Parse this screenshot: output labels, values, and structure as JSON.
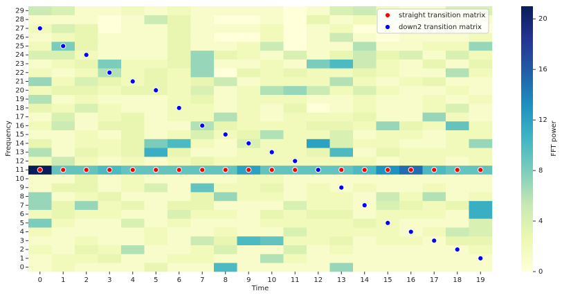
{
  "chart_data": {
    "type": "heatmap",
    "xlabel": "Time",
    "ylabel": "Frequency",
    "colorbar_label": "FFT power",
    "colormap": "YlGnBu",
    "clim": [
      0,
      21
    ],
    "cticks": [
      0,
      4,
      8,
      12,
      16,
      20
    ],
    "legend": "upper right",
    "x": [
      0,
      1,
      2,
      3,
      4,
      5,
      6,
      7,
      8,
      9,
      10,
      11,
      12,
      13,
      14,
      15,
      16,
      17,
      18,
      19
    ],
    "y": [
      0,
      1,
      2,
      3,
      4,
      5,
      6,
      7,
      8,
      9,
      10,
      11,
      12,
      13,
      14,
      15,
      16,
      17,
      18,
      19,
      20,
      21,
      22,
      23,
      24,
      25,
      26,
      27,
      28,
      29
    ],
    "z": [
      [
        1,
        2,
        1,
        1,
        1,
        3,
        1,
        1,
        10,
        1,
        1,
        1,
        1,
        7,
        1,
        1,
        1,
        1,
        1,
        1
      ],
      [
        1,
        2,
        2,
        3,
        1,
        1,
        2,
        2,
        1,
        1,
        6,
        2,
        1,
        1,
        1,
        1,
        1,
        1,
        1,
        1
      ],
      [
        2,
        1,
        3,
        2,
        6,
        1,
        1,
        2,
        4,
        1,
        1,
        4,
        1,
        2,
        1,
        1,
        1,
        1,
        1,
        2
      ],
      [
        1,
        1,
        2,
        1,
        1,
        2,
        1,
        5,
        3,
        10,
        9,
        2,
        2,
        3,
        1,
        2,
        2,
        1,
        3,
        3
      ],
      [
        2,
        1,
        1,
        1,
        1,
        2,
        1,
        1,
        2,
        1,
        1,
        4,
        2,
        2,
        2,
        2,
        1,
        2,
        5,
        4
      ],
      [
        8,
        2,
        1,
        1,
        4,
        1,
        2,
        1,
        1,
        1,
        2,
        2,
        2,
        2,
        3,
        2,
        1,
        1,
        1,
        4
      ],
      [
        2,
        3,
        2,
        2,
        1,
        1,
        4,
        2,
        2,
        1,
        3,
        2,
        3,
        3,
        1,
        2,
        2,
        2,
        1,
        11
      ],
      [
        7,
        3,
        7,
        2,
        3,
        1,
        3,
        3,
        1,
        1,
        1,
        4,
        2,
        2,
        1,
        4,
        3,
        2,
        3,
        11
      ],
      [
        7,
        1,
        2,
        3,
        1,
        1,
        1,
        3,
        7,
        2,
        2,
        1,
        2,
        2,
        1,
        5,
        2,
        6,
        1,
        2
      ],
      [
        1,
        3,
        3,
        1,
        2,
        4,
        1,
        9,
        2,
        2,
        3,
        1,
        2,
        1,
        2,
        1,
        1,
        2,
        1,
        1
      ],
      [
        1,
        1,
        3,
        1,
        2,
        1,
        1,
        1,
        1,
        2,
        2,
        1,
        1,
        1,
        1,
        1,
        1,
        1,
        1,
        1
      ],
      [
        21,
        9,
        9,
        10,
        9,
        9,
        9,
        9,
        9,
        12,
        9,
        9,
        9,
        9,
        10,
        13,
        15,
        10,
        9,
        9
      ],
      [
        2,
        5,
        2,
        1,
        2,
        1,
        2,
        3,
        2,
        2,
        2,
        2,
        2,
        2,
        2,
        1,
        2,
        2,
        1,
        2
      ],
      [
        6,
        1,
        3,
        2,
        3,
        11,
        3,
        1,
        1,
        2,
        2,
        2,
        3,
        10,
        1,
        3,
        2,
        2,
        2,
        2
      ],
      [
        3,
        1,
        2,
        2,
        3,
        8,
        10,
        2,
        1,
        4,
        2,
        2,
        12,
        4,
        2,
        2,
        1,
        1,
        2,
        7
      ],
      [
        1,
        1,
        2,
        1,
        3,
        1,
        2,
        4,
        2,
        3,
        6,
        2,
        2,
        4,
        1,
        2,
        2,
        1,
        2,
        2
      ],
      [
        2,
        5,
        1,
        3,
        3,
        1,
        1,
        6,
        3,
        2,
        2,
        2,
        3,
        3,
        2,
        7,
        3,
        2,
        9,
        2
      ],
      [
        1,
        4,
        1,
        2,
        3,
        1,
        2,
        2,
        6,
        2,
        1,
        2,
        2,
        2,
        3,
        1,
        1,
        7,
        2,
        1
      ],
      [
        3,
        2,
        4,
        2,
        1,
        1,
        2,
        2,
        1,
        2,
        1,
        3,
        0,
        1,
        2,
        1,
        1,
        2,
        4,
        1
      ],
      [
        6,
        1,
        2,
        1,
        1,
        1,
        2,
        3,
        1,
        2,
        2,
        2,
        1,
        1,
        2,
        1,
        1,
        2,
        1,
        2
      ],
      [
        2,
        3,
        3,
        2,
        3,
        3,
        2,
        4,
        1,
        2,
        6,
        7,
        5,
        2,
        4,
        2,
        1,
        1,
        2,
        1
      ],
      [
        7,
        2,
        4,
        3,
        2,
        3,
        2,
        3,
        5,
        1,
        2,
        2,
        2,
        6,
        2,
        1,
        2,
        3,
        1,
        1
      ],
      [
        2,
        1,
        2,
        6,
        2,
        3,
        2,
        7,
        0,
        3,
        2,
        3,
        2,
        2,
        3,
        2,
        1,
        1,
        6,
        2
      ],
      [
        1,
        2,
        3,
        8,
        2,
        2,
        3,
        7,
        1,
        1,
        2,
        1,
        8,
        10,
        5,
        2,
        1,
        3,
        1,
        3
      ],
      [
        4,
        4,
        2,
        1,
        1,
        1,
        3,
        7,
        3,
        2,
        1,
        4,
        1,
        3,
        5,
        3,
        4,
        1,
        4,
        2
      ],
      [
        2,
        8,
        3,
        1,
        1,
        1,
        3,
        1,
        1,
        2,
        5,
        0,
        1,
        1,
        6,
        1,
        1,
        2,
        2,
        7
      ],
      [
        1,
        2,
        3,
        1,
        1,
        1,
        3,
        1,
        0,
        0,
        2,
        0,
        1,
        5,
        1,
        0,
        1,
        1,
        1,
        2
      ],
      [
        2,
        4,
        3,
        0,
        1,
        1,
        3,
        1,
        1,
        1,
        2,
        0,
        1,
        2,
        0,
        1,
        1,
        0,
        1,
        0
      ],
      [
        1,
        1,
        1,
        0,
        1,
        5,
        3,
        1,
        0,
        0,
        1,
        0,
        3,
        1,
        2,
        1,
        1,
        1,
        2,
        1
      ],
      [
        5,
        4,
        1,
        1,
        2,
        1,
        2,
        1,
        1,
        1,
        1,
        0,
        1,
        4,
        5,
        2,
        1,
        1,
        4,
        4
      ]
    ],
    "series": [
      {
        "name": "straight transition matrix",
        "color": "#ff0000",
        "x": [
          0,
          1,
          2,
          3,
          4,
          5,
          6,
          7,
          8,
          9,
          10,
          11,
          12,
          13,
          14,
          15,
          16,
          17,
          18,
          19
        ],
        "y": [
          11,
          11,
          11,
          11,
          11,
          11,
          11,
          11,
          11,
          11,
          11,
          11,
          11,
          11,
          11,
          11,
          11,
          11,
          11,
          11
        ]
      },
      {
        "name": "down2 transition matrix",
        "color": "#0000ff",
        "x": [
          0,
          1,
          2,
          3,
          4,
          5,
          6,
          7,
          8,
          9,
          10,
          11,
          12,
          13,
          14,
          15,
          16,
          17,
          18,
          19
        ],
        "y": [
          27,
          25,
          24,
          22,
          21,
          20,
          18,
          16,
          15,
          14,
          13,
          12,
          11,
          9,
          7,
          5,
          4,
          3,
          2,
          1
        ]
      }
    ]
  }
}
